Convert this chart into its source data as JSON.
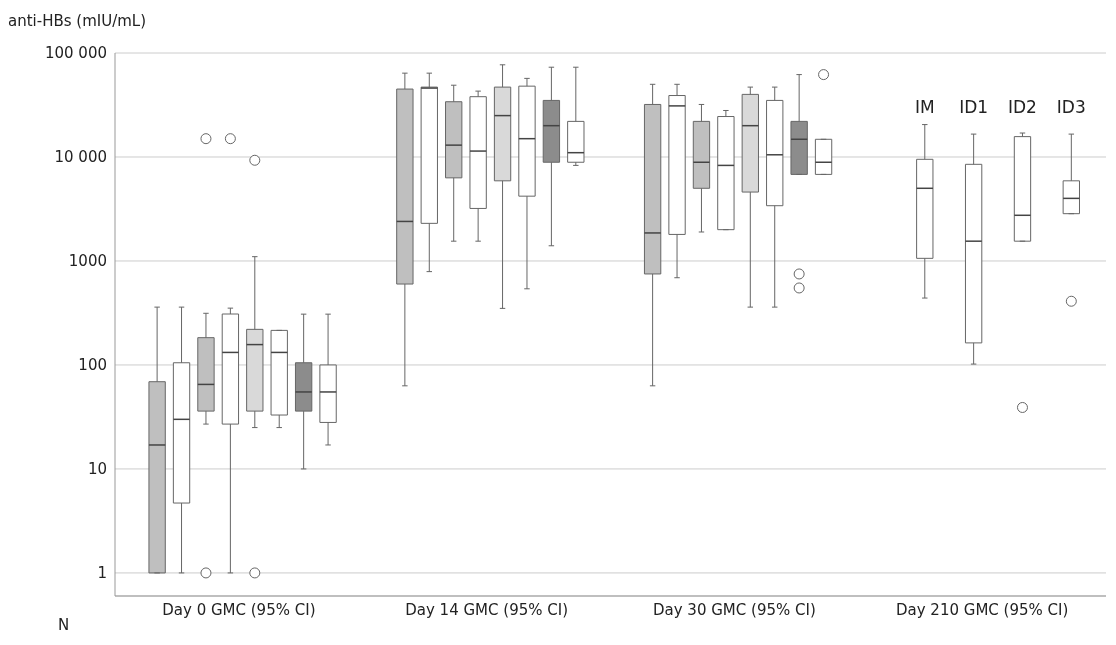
{
  "chart_data": {
    "type": "box",
    "ylabel": "anti-HBs (mIU/mL)",
    "categories": [
      "Day 0 GMC (95% CI)",
      "Day 14 GMC (95% CI)",
      "Day 30 GMC (95% CI)",
      "Day 210 GMC (95% CI)"
    ],
    "log": true,
    "grid": "y",
    "ylim": [
      0.6,
      100000
    ],
    "yticks": [
      1,
      10,
      100,
      1000,
      {
        "value": 10000,
        "label": "10 000"
      },
      {
        "value": 100000,
        "label": "100 000"
      }
    ],
    "series": [
      {
        "color": "#bfbfbf",
        "boxes": [
          {
            "low": 1,
            "q1": 1,
            "median": 17,
            "q3": 69,
            "high": 360
          },
          {
            "low": 63,
            "q1": 600,
            "median": 2400,
            "q3": 45000,
            "high": 64000
          },
          {
            "low": 63,
            "q1": 750,
            "median": 1860,
            "q3": 32000,
            "high": 50000
          },
          null
        ]
      },
      {
        "color": "#ffffff",
        "boxes": [
          {
            "low": 1,
            "q1": 4.7,
            "median": 30,
            "q3": 105,
            "high": 360
          },
          {
            "low": 790,
            "q1": 2300,
            "median": 46000,
            "q3": 47000,
            "high": 64000
          },
          {
            "low": 690,
            "q1": 1800,
            "median": 31000,
            "q3": 39000,
            "high": 50000
          },
          {
            "low": 440,
            "q1": 1060,
            "median": 5000,
            "q3": 9500,
            "high": 20500
          }
        ]
      },
      {
        "color": "#bfbfbf",
        "boxes": [
          {
            "low": 27,
            "q1": 36,
            "median": 65,
            "q3": 183,
            "high": 314,
            "outliers": [
              15000,
              1
            ]
          },
          {
            "low": 1550,
            "q1": 6300,
            "median": 13000,
            "q3": 34000,
            "high": 49000
          },
          {
            "low": 1900,
            "q1": 5000,
            "median": 8900,
            "q3": 22000,
            "high": 32000
          },
          null
        ]
      },
      {
        "color": "#ffffff",
        "boxes": [
          {
            "low": 1,
            "q1": 27,
            "median": 132,
            "q3": 309,
            "high": 352,
            "outliers": [
              15000
            ]
          },
          {
            "low": 1550,
            "q1": 3200,
            "median": 11400,
            "q3": 38000,
            "high": 43000
          },
          {
            "low": 2000,
            "q1": 2000,
            "median": 8300,
            "q3": 24500,
            "high": 28000
          },
          {
            "low": 102,
            "q1": 163,
            "median": 1550,
            "q3": 8500,
            "high": 16600
          }
        ]
      },
      {
        "color": "#d9d9d9",
        "boxes": [
          {
            "low": 25,
            "q1": 36,
            "median": 157,
            "q3": 220,
            "high": 1100,
            "outliers": [
              9300,
              1
            ]
          },
          {
            "low": 350,
            "q1": 5900,
            "median": 25000,
            "q3": 47000,
            "high": 77000
          },
          {
            "low": 360,
            "q1": 4600,
            "median": 20000,
            "q3": 40000,
            "high": 47000
          },
          null
        ]
      },
      {
        "color": "#ffffff",
        "boxes": [
          {
            "low": 25,
            "q1": 33,
            "median": 132,
            "q3": 215,
            "high": 215
          },
          {
            "low": 540,
            "q1": 4200,
            "median": 15000,
            "q3": 48000,
            "high": 57000
          },
          {
            "low": 360,
            "q1": 3400,
            "median": 10500,
            "q3": 35000,
            "high": 47000
          },
          {
            "low": 1550,
            "q1": 1550,
            "median": 2750,
            "q3": 15700,
            "high": 17000,
            "outliers": [
              39
            ]
          }
        ]
      },
      {
        "color": "#8c8c8c",
        "boxes": [
          {
            "low": 10,
            "q1": 36,
            "median": 55,
            "q3": 105,
            "high": 308
          },
          {
            "low": 1400,
            "q1": 8900,
            "median": 20000,
            "q3": 35000,
            "high": 73000
          },
          {
            "low": 6800,
            "q1": 6800,
            "median": 14800,
            "q3": 22000,
            "high": 62000,
            "outliers": [
              750,
              550
            ]
          },
          null
        ]
      },
      {
        "color": "#ffffff",
        "boxes": [
          {
            "low": 17,
            "q1": 28,
            "median": 55,
            "q3": 100,
            "high": 308
          },
          {
            "low": 8300,
            "q1": 8900,
            "median": 11000,
            "q3": 22000,
            "high": 73000
          },
          {
            "low": 6800,
            "q1": 6800,
            "median": 8900,
            "q3": 14800,
            "high": 14800,
            "outliers": [
              62000
            ]
          },
          {
            "low": 2850,
            "q1": 2850,
            "median": 4000,
            "q3": 5900,
            "high": 16600,
            "outliers": [
              410
            ]
          }
        ]
      }
    ],
    "annotations": [
      "N",
      "IM",
      "ID1",
      "ID2",
      "ID3"
    ]
  }
}
